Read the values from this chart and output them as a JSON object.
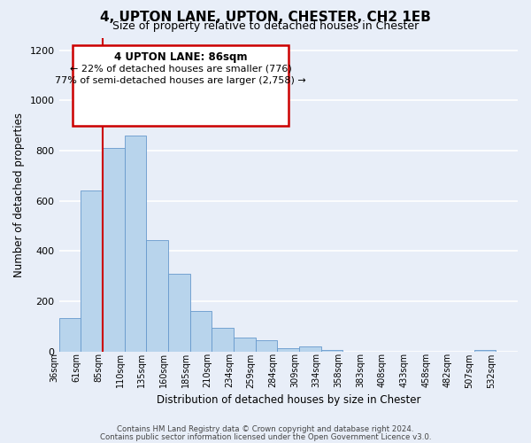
{
  "title_line1": "4, UPTON LANE, UPTON, CHESTER, CH2 1EB",
  "title_line2": "Size of property relative to detached houses in Chester",
  "xlabel": "Distribution of detached houses by size in Chester",
  "ylabel": "Number of detached properties",
  "bar_values": [
    135,
    640,
    810,
    860,
    445,
    310,
    160,
    95,
    55,
    45,
    15,
    20,
    5,
    0,
    0,
    0,
    0,
    0,
    0,
    5,
    0
  ],
  "bar_labels": [
    "36sqm",
    "61sqm",
    "85sqm",
    "110sqm",
    "135sqm",
    "160sqm",
    "185sqm",
    "210sqm",
    "234sqm",
    "259sqm",
    "284sqm",
    "309sqm",
    "334sqm",
    "358sqm",
    "383sqm",
    "408sqm",
    "433sqm",
    "458sqm",
    "482sqm",
    "507sqm",
    "532sqm"
  ],
  "bar_color": "#b8d4ec",
  "bar_edge_color": "#6699cc",
  "highlight_line_color": "#cc0000",
  "property_label": "4 UPTON LANE: 86sqm",
  "annotation_line1": "← 22% of detached houses are smaller (776)",
  "annotation_line2": "77% of semi-detached houses are larger (2,758) →",
  "annotation_box_color": "#cc0000",
  "ylim": [
    0,
    1250
  ],
  "yticks": [
    0,
    200,
    400,
    600,
    800,
    1000,
    1200
  ],
  "footer_line1": "Contains HM Land Registry data © Crown copyright and database right 2024.",
  "footer_line2": "Contains public sector information licensed under the Open Government Licence v3.0.",
  "bg_color": "#e8eef8",
  "grid_color": "#ffffff"
}
